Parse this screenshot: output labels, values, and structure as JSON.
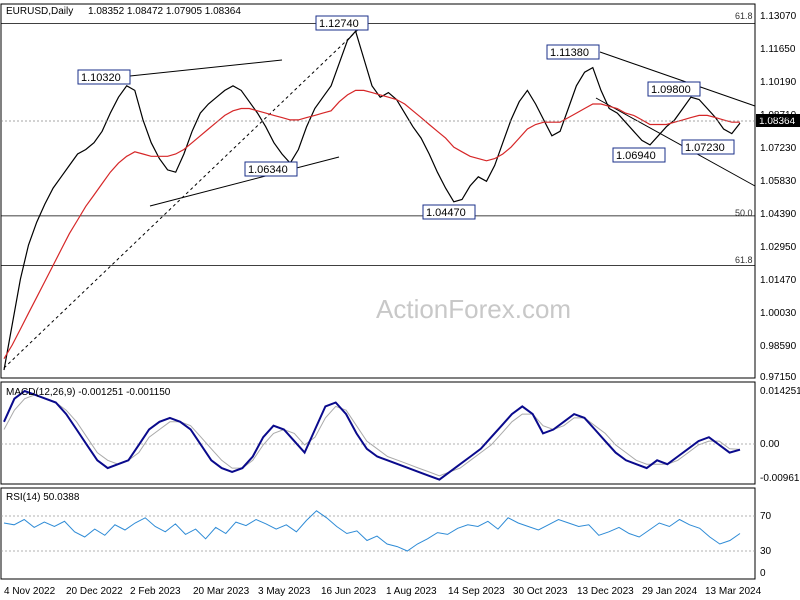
{
  "header": {
    "symbol": "EURUSD,Daily",
    "ohlc": "1.08352 1.08472 1.07905 1.08364"
  },
  "watermark": "ActionForex.com",
  "colors": {
    "price": "#000000",
    "ema": "#d62728",
    "macd": "#0a0a8c",
    "macd_signal": "#aaaaaa",
    "rsi": "#2e8bd6",
    "level": "#000000"
  },
  "chart_data": [
    {
      "type": "line",
      "panel": "price",
      "y_ticks": [
        "1.13070",
        "1.11650",
        "1.10190",
        "1.08710",
        "1.07230",
        "1.05830",
        "1.04390",
        "1.02950",
        "1.01470",
        "1.00030",
        "0.98590",
        "0.97150"
      ],
      "ylim": [
        0.9715,
        1.1307
      ],
      "last_price_label": "1.08364",
      "annotations": [
        {
          "label": "1.10320",
          "value": 1.1032
        },
        {
          "label": "1.12740",
          "value": 1.1274
        },
        {
          "label": "1.06340",
          "value": 1.0634
        },
        {
          "label": "1.04470",
          "value": 1.0447
        },
        {
          "label": "1.11380",
          "value": 1.1138
        },
        {
          "label": "1.09800",
          "value": 1.098
        },
        {
          "label": "1.06940",
          "value": 1.0694
        },
        {
          "label": "1.07230",
          "value": 1.0723
        }
      ],
      "fib_levels": [
        {
          "label": "61.8",
          "value": 1.1274
        },
        {
          "label": "50.0",
          "value": 1.0428
        },
        {
          "label": "61.8",
          "value": 1.021
        }
      ],
      "series": [
        {
          "name": "",
          "values": [
            0.975,
            0.995,
            1.015,
            1.03,
            1.04,
            1.048,
            1.055,
            1.06,
            1.065,
            1.07,
            1.072,
            1.075,
            1.08,
            1.088,
            1.095,
            1.1,
            1.098,
            1.085,
            1.075,
            1.068,
            1.063,
            1.062,
            1.07,
            1.08,
            1.088,
            1.092,
            1.095,
            1.098,
            1.1,
            1.098,
            1.093,
            1.088,
            1.082,
            1.075,
            1.07,
            1.066,
            1.072,
            1.082,
            1.09,
            1.095,
            1.1,
            1.11,
            1.12,
            1.124,
            1.112,
            1.1,
            1.095,
            1.097,
            1.094,
            1.088,
            1.082,
            1.077,
            1.07,
            1.062,
            1.055,
            1.049,
            1.05,
            1.056,
            1.06,
            1.058,
            1.065,
            1.075,
            1.085,
            1.093,
            1.098,
            1.092,
            1.085,
            1.078,
            1.08,
            1.09,
            1.1,
            1.106,
            1.108,
            1.098,
            1.09,
            1.088,
            1.084,
            1.08,
            1.076,
            1.074,
            1.078,
            1.082,
            1.085,
            1.09,
            1.095,
            1.094,
            1.09,
            1.086,
            1.081,
            1.079,
            1.0836
          ]
        },
        {
          "name": "",
          "values": [
            0.98,
            0.986,
            0.993,
            1.0,
            1.007,
            1.014,
            1.021,
            1.028,
            1.035,
            1.041,
            1.047,
            1.052,
            1.057,
            1.062,
            1.066,
            1.069,
            1.071,
            1.07,
            1.069,
            1.069,
            1.069,
            1.07,
            1.072,
            1.075,
            1.078,
            1.081,
            1.084,
            1.087,
            1.089,
            1.09,
            1.09,
            1.089,
            1.088,
            1.087,
            1.086,
            1.085,
            1.085,
            1.086,
            1.087,
            1.088,
            1.089,
            1.093,
            1.096,
            1.098,
            1.098,
            1.097,
            1.096,
            1.095,
            1.094,
            1.092,
            1.089,
            1.086,
            1.083,
            1.08,
            1.077,
            1.073,
            1.071,
            1.069,
            1.068,
            1.067,
            1.068,
            1.07,
            1.073,
            1.077,
            1.081,
            1.083,
            1.084,
            1.084,
            1.084,
            1.086,
            1.088,
            1.09,
            1.092,
            1.092,
            1.091,
            1.09,
            1.088,
            1.087,
            1.085,
            1.083,
            1.083,
            1.083,
            1.084,
            1.085,
            1.086,
            1.087,
            1.087,
            1.086,
            1.085,
            1.084,
            1.084
          ]
        }
      ]
    },
    {
      "type": "line",
      "panel": "macd",
      "title": "MACD(12,26,9) -0.001251 -0.001150",
      "y_ticks": [
        "0.014251",
        "0.00",
        "-0.009617"
      ],
      "ylim": [
        -0.009617,
        0.014251
      ],
      "series": [
        {
          "name": "",
          "values": [
            0.006,
            0.012,
            0.014,
            0.013,
            0.012,
            0.011,
            0.008,
            0.004,
            0.0,
            -0.004,
            -0.006,
            -0.005,
            -0.004,
            0.0,
            0.004,
            0.006,
            0.007,
            0.006,
            0.004,
            0.0,
            -0.004,
            -0.006,
            -0.007,
            -0.006,
            -0.003,
            0.002,
            0.005,
            0.004,
            0.001,
            -0.002,
            0.004,
            0.01,
            0.011,
            0.008,
            0.003,
            -0.001,
            -0.003,
            -0.004,
            -0.005,
            -0.006,
            -0.007,
            -0.008,
            -0.009,
            -0.007,
            -0.005,
            -0.003,
            -0.001,
            0.002,
            0.005,
            0.008,
            0.01,
            0.008,
            0.003,
            0.004,
            0.006,
            0.008,
            0.007,
            0.004,
            0.001,
            -0.002,
            -0.004,
            -0.005,
            -0.006,
            -0.004,
            -0.005,
            -0.003,
            -0.001,
            0.001,
            0.002,
            0.0,
            -0.002,
            -0.00125
          ]
        },
        {
          "name": "",
          "values": [
            0.004,
            0.009,
            0.012,
            0.013,
            0.012,
            0.011,
            0.009,
            0.006,
            0.002,
            -0.002,
            -0.004,
            -0.005,
            -0.004,
            -0.002,
            0.002,
            0.004,
            0.006,
            0.006,
            0.005,
            0.002,
            -0.001,
            -0.004,
            -0.006,
            -0.006,
            -0.004,
            0.0,
            0.003,
            0.004,
            0.003,
            0.0,
            0.002,
            0.007,
            0.01,
            0.009,
            0.005,
            0.001,
            -0.001,
            -0.003,
            -0.004,
            -0.005,
            -0.006,
            -0.007,
            -0.008,
            -0.007,
            -0.006,
            -0.004,
            -0.002,
            0.0,
            0.003,
            0.006,
            0.008,
            0.008,
            0.005,
            0.004,
            0.005,
            0.007,
            0.007,
            0.005,
            0.003,
            0.0,
            -0.002,
            -0.004,
            -0.005,
            -0.005,
            -0.005,
            -0.004,
            -0.002,
            0.0,
            0.001,
            0.001,
            -0.001,
            -0.00115
          ]
        }
      ]
    },
    {
      "type": "line",
      "panel": "rsi",
      "title": "RSI(14) 50.0388",
      "y_ticks": [
        "70",
        "30",
        "0"
      ],
      "ylim": [
        0,
        100
      ],
      "series": [
        {
          "name": "",
          "values": [
            62,
            60,
            66,
            57,
            63,
            58,
            64,
            52,
            46,
            55,
            48,
            60,
            54,
            62,
            68,
            58,
            52,
            61,
            49,
            55,
            44,
            57,
            50,
            63,
            59,
            66,
            61,
            55,
            60,
            52,
            65,
            76,
            68,
            58,
            50,
            53,
            42,
            47,
            38,
            35,
            30,
            38,
            44,
            51,
            49,
            56,
            60,
            58,
            64,
            55,
            68,
            62,
            58,
            54,
            60,
            66,
            62,
            58,
            60,
            48,
            52,
            57,
            50,
            46,
            54,
            62,
            58,
            66,
            60,
            56,
            46,
            38,
            42,
            50
          ]
        }
      ]
    }
  ],
  "x_axis": {
    "labels": [
      "4 Nov 2022",
      "20 Dec 2022",
      "2 Feb 2023",
      "20 Mar 2023",
      "3 May 2023",
      "16 Jun 2023",
      "1 Aug 2023",
      "14 Sep 2023",
      "30 Oct 2023",
      "13 Dec 2023",
      "29 Jan 2024",
      "13 Mar 2024"
    ]
  }
}
